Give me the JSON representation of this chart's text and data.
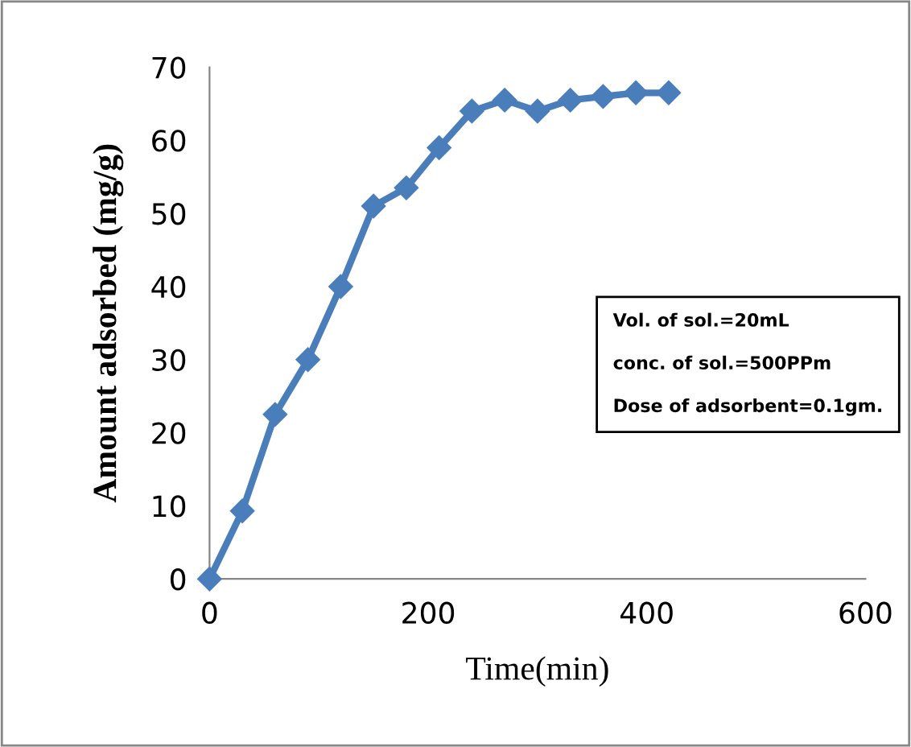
{
  "chart_data": {
    "type": "line",
    "xlabel": "Time(min)",
    "ylabel": "Amount adsorbed (mg/g)",
    "annotations": [
      "Vol. of sol.=20mL",
      "conc. of sol.=500PPm",
      "Dose of adsorbent=0.1gm."
    ],
    "x": [
      0,
      30,
      60,
      90,
      120,
      150,
      180,
      210,
      240,
      270,
      300,
      330,
      360,
      390,
      420
    ],
    "series": [
      {
        "color": "#4a7ebb",
        "values": [
          0,
          9.3,
          22.5,
          30,
          40,
          51,
          53.5,
          59,
          64,
          65.5,
          64,
          65.5,
          66,
          66.5,
          66.5
        ]
      }
    ],
    "xlim": [
      0,
      600
    ],
    "xticks": [
      0,
      200,
      400,
      600
    ],
    "ylim": [
      0,
      70
    ],
    "yticks": [
      0,
      10,
      20,
      30,
      40,
      50,
      60,
      70
    ],
    "grid": false,
    "legend": false,
    "marker": "diamond",
    "line_style": "solid"
  }
}
